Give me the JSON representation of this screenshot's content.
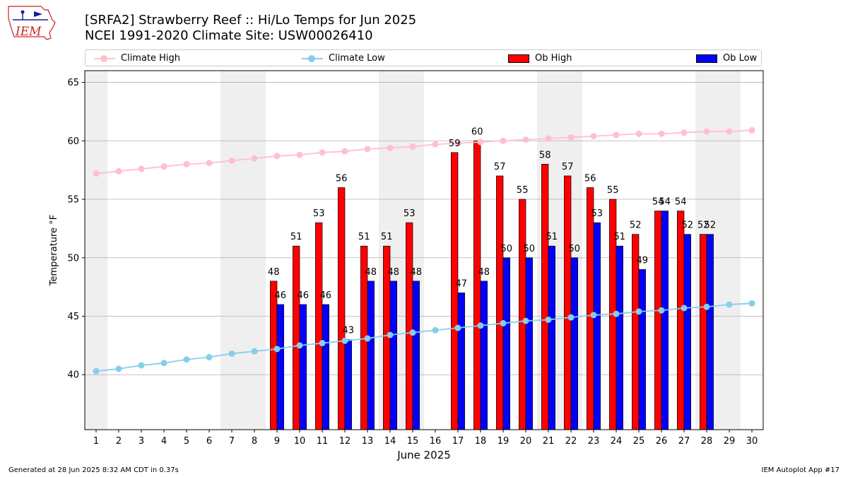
{
  "header": {
    "title_line1": "[SRFA2] Strawberry Reef :: Hi/Lo Temps for Jun 2025",
    "title_line2": "NCEI 1991-2020 Climate Site: USW00026410",
    "logo_text": "IEM"
  },
  "footer": {
    "generated": "Generated at 28 Jun 2025 8:32 AM CDT in 0.37s",
    "app": "IEM Autoplot App #17"
  },
  "legend": {
    "climate_high": "Climate High",
    "climate_low": "Climate Low",
    "ob_high": "Ob High",
    "ob_low": "Ob Low"
  },
  "colors": {
    "climate_high": "#ffc0cb",
    "climate_low": "#87ceeb",
    "ob_high": "#ff0000",
    "ob_low": "#0000ff",
    "weekend_band": "#efefef",
    "grid": "#b0b0b0"
  },
  "chart_data": {
    "type": "bar",
    "title": "[SRFA2] Strawberry Reef :: Hi/Lo Temps for Jun 2025",
    "subtitle": "NCEI 1991-2020 Climate Site: USW00026410",
    "xlabel": "June 2025",
    "ylabel": "Temperature °F",
    "xlim": [
      0.5,
      30.5
    ],
    "ylim": [
      35.3,
      66
    ],
    "yticks": [
      40,
      45,
      50,
      55,
      60,
      65
    ],
    "x": [
      1,
      2,
      3,
      4,
      5,
      6,
      7,
      8,
      9,
      10,
      11,
      12,
      13,
      14,
      15,
      16,
      17,
      18,
      19,
      20,
      21,
      22,
      23,
      24,
      25,
      26,
      27,
      28,
      29,
      30
    ],
    "weekend_days": [
      1,
      7,
      8,
      14,
      15,
      21,
      22,
      28,
      29
    ],
    "grid": true,
    "legend_position": "top",
    "series": [
      {
        "name": "Climate High",
        "kind": "line",
        "values": [
          57.2,
          57.4,
          57.6,
          57.8,
          58.0,
          58.1,
          58.3,
          58.5,
          58.7,
          58.8,
          59.0,
          59.1,
          59.3,
          59.4,
          59.5,
          59.7,
          59.8,
          59.9,
          60.0,
          60.1,
          60.2,
          60.3,
          60.4,
          60.5,
          60.6,
          60.6,
          60.7,
          60.8,
          60.8,
          60.9
        ]
      },
      {
        "name": "Climate Low",
        "kind": "line",
        "values": [
          40.3,
          40.5,
          40.8,
          41.0,
          41.3,
          41.5,
          41.8,
          42.0,
          42.2,
          42.5,
          42.7,
          42.9,
          43.1,
          43.4,
          43.6,
          43.8,
          44.0,
          44.2,
          44.4,
          44.6,
          44.7,
          44.9,
          45.1,
          45.2,
          45.4,
          45.5,
          45.7,
          45.8,
          46.0,
          46.1
        ]
      },
      {
        "name": "Ob High",
        "kind": "bar",
        "values": [
          null,
          null,
          null,
          null,
          null,
          null,
          null,
          null,
          48,
          51,
          53,
          56,
          51,
          51,
          53,
          null,
          59,
          60,
          57,
          55,
          58,
          57,
          56,
          55,
          52,
          54,
          54,
          52,
          null,
          null
        ]
      },
      {
        "name": "Ob Low",
        "kind": "bar",
        "values": [
          null,
          null,
          null,
          null,
          null,
          null,
          null,
          null,
          46,
          46,
          46,
          43,
          48,
          48,
          48,
          null,
          47,
          48,
          50,
          50,
          51,
          50,
          53,
          51,
          49,
          54,
          52,
          52,
          null,
          null
        ]
      }
    ]
  }
}
